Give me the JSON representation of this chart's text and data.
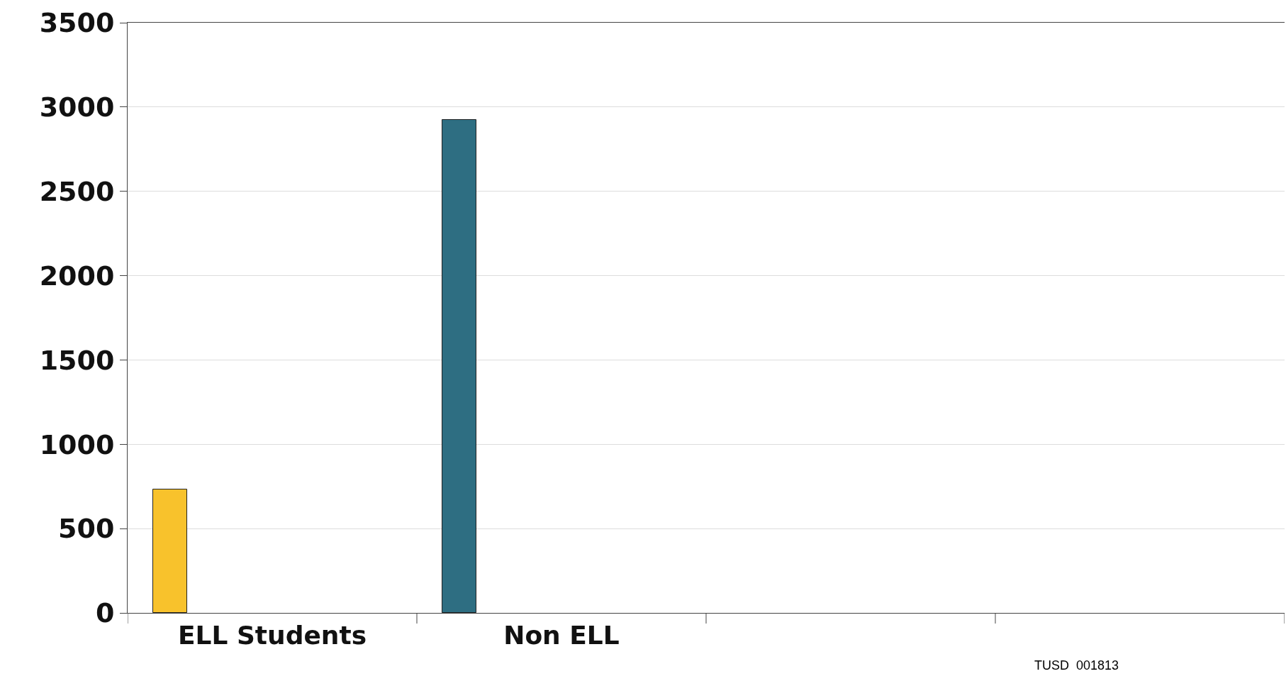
{
  "chart_data": {
    "type": "bar",
    "categories": [
      "ELL Students",
      "Non ELL",
      null,
      null
    ],
    "values": [
      733,
      2923,
      null,
      null
    ],
    "colors": [
      "#f8c22c",
      "#2e6e82",
      null,
      null
    ],
    "ylim": [
      0,
      3500
    ],
    "yticks": [
      0,
      500,
      1000,
      1500,
      2000,
      2500,
      3000,
      3500
    ],
    "grid": "y",
    "annotations": [
      "TUSD  001813"
    ]
  }
}
